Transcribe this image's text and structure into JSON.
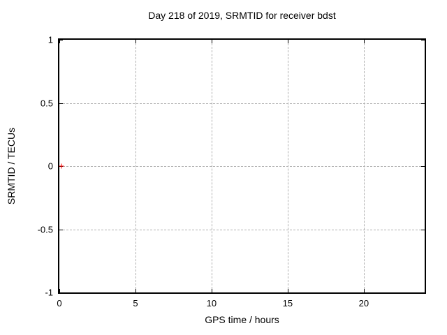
{
  "title": "Day 218 of 2019, SRMTID for receiver bdst",
  "chart_data": {
    "type": "scatter",
    "title": "Day 218 of 2019, SRMTID for receiver bdst",
    "xlabel": "GPS time / hours",
    "ylabel": "SRMTID / TECUs",
    "xlim": [
      0,
      24
    ],
    "ylim": [
      -1,
      1
    ],
    "xticks": [
      0,
      5,
      10,
      15,
      20
    ],
    "yticks": [
      -1,
      -0.5,
      0,
      0.5,
      1
    ],
    "grid": true,
    "legend": "none",
    "series": [
      {
        "name": "",
        "marker": "plus",
        "color": "#ff0000",
        "points": [
          [
            0.15,
            0
          ]
        ]
      }
    ]
  },
  "colors": {
    "background": "#ffffff",
    "border": "#000000",
    "grid": "#b0b0b0",
    "text": "#000000",
    "marker": "#ff0000"
  }
}
